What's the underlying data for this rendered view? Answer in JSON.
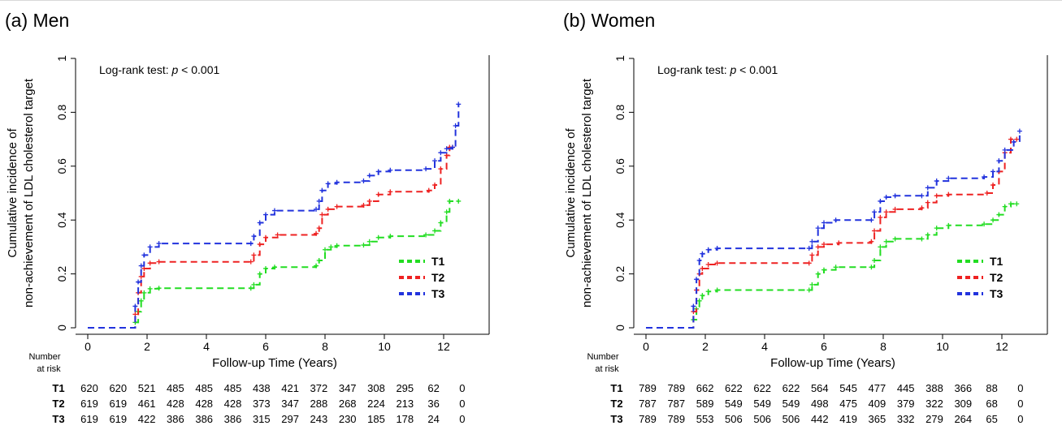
{
  "chart_data": [
    {
      "type": "line",
      "title": "(a) Men",
      "annotation": "Log-rank test:",
      "annotation_p": "p",
      "annotation_value": "< 0.001",
      "xlabel": "Follow-up Time (Years)",
      "ylabel_line1": "Cumulative incidence of",
      "ylabel_line2": "non-achievement of LDL cholesterol target",
      "xlim": [
        0,
        13.5
      ],
      "ylim": [
        0,
        1
      ],
      "xticks": [
        "0",
        "2",
        "4",
        "6",
        "8",
        "10",
        "12"
      ],
      "yticks": [
        "0",
        "0.2",
        "0.4",
        "0.6",
        "0.8",
        "1"
      ],
      "legend_position": "right",
      "series": [
        {
          "name": "T1",
          "color": "#22dd22",
          "points": [
            [
              0,
              0
            ],
            [
              1.5,
              0
            ],
            [
              1.6,
              0.02
            ],
            [
              1.7,
              0.06
            ],
            [
              1.8,
              0.1
            ],
            [
              1.9,
              0.13
            ],
            [
              2.1,
              0.145
            ],
            [
              2.4,
              0.147
            ],
            [
              5.5,
              0.147
            ],
            [
              5.6,
              0.16
            ],
            [
              5.8,
              0.2
            ],
            [
              6.0,
              0.22
            ],
            [
              6.3,
              0.225
            ],
            [
              7.7,
              0.23
            ],
            [
              7.8,
              0.25
            ],
            [
              8.0,
              0.29
            ],
            [
              8.2,
              0.3
            ],
            [
              8.4,
              0.305
            ],
            [
              9.3,
              0.307
            ],
            [
              9.5,
              0.32
            ],
            [
              9.8,
              0.335
            ],
            [
              10.2,
              0.34
            ],
            [
              11.4,
              0.345
            ],
            [
              11.7,
              0.36
            ],
            [
              11.9,
              0.39
            ],
            [
              12.1,
              0.43
            ],
            [
              12.2,
              0.47
            ],
            [
              12.5,
              0.47
            ]
          ]
        },
        {
          "name": "T2",
          "color": "#ee2222",
          "points": [
            [
              0,
              0
            ],
            [
              1.5,
              0
            ],
            [
              1.6,
              0.05
            ],
            [
              1.7,
              0.13
            ],
            [
              1.8,
              0.19
            ],
            [
              1.9,
              0.22
            ],
            [
              2.1,
              0.24
            ],
            [
              2.4,
              0.245
            ],
            [
              5.5,
              0.245
            ],
            [
              5.6,
              0.27
            ],
            [
              5.8,
              0.31
            ],
            [
              6.0,
              0.335
            ],
            [
              6.4,
              0.345
            ],
            [
              7.7,
              0.35
            ],
            [
              7.8,
              0.37
            ],
            [
              7.9,
              0.42
            ],
            [
              8.1,
              0.44
            ],
            [
              8.4,
              0.45
            ],
            [
              9.3,
              0.455
            ],
            [
              9.5,
              0.47
            ],
            [
              9.8,
              0.495
            ],
            [
              10.2,
              0.505
            ],
            [
              11.5,
              0.51
            ],
            [
              11.7,
              0.53
            ],
            [
              11.9,
              0.59
            ],
            [
              12.1,
              0.64
            ],
            [
              12.2,
              0.67
            ],
            [
              12.3,
              0.67
            ]
          ]
        },
        {
          "name": "T3",
          "color": "#2233dd",
          "points": [
            [
              0,
              0
            ],
            [
              1.5,
              0
            ],
            [
              1.6,
              0.08
            ],
            [
              1.7,
              0.17
            ],
            [
              1.8,
              0.23
            ],
            [
              1.9,
              0.27
            ],
            [
              2.1,
              0.3
            ],
            [
              2.4,
              0.313
            ],
            [
              5.5,
              0.313
            ],
            [
              5.6,
              0.34
            ],
            [
              5.8,
              0.39
            ],
            [
              6.0,
              0.42
            ],
            [
              6.3,
              0.435
            ],
            [
              7.7,
              0.44
            ],
            [
              7.8,
              0.47
            ],
            [
              7.9,
              0.51
            ],
            [
              8.1,
              0.535
            ],
            [
              8.4,
              0.54
            ],
            [
              9.3,
              0.545
            ],
            [
              9.5,
              0.565
            ],
            [
              9.8,
              0.58
            ],
            [
              10.2,
              0.585
            ],
            [
              11.4,
              0.59
            ],
            [
              11.7,
              0.62
            ],
            [
              11.9,
              0.65
            ],
            [
              12.1,
              0.665
            ],
            [
              12.3,
              0.67
            ],
            [
              12.4,
              0.75
            ],
            [
              12.5,
              0.83
            ]
          ]
        }
      ],
      "risk_table": {
        "label_line1": "Number",
        "label_line2": "at risk",
        "rows": [
          {
            "name": "T1",
            "values": [
              "620",
              "620",
              "521",
              "485",
              "485",
              "485",
              "438",
              "421",
              "372",
              "347",
              "308",
              "295",
              "62",
              "0"
            ]
          },
          {
            "name": "T2",
            "values": [
              "619",
              "619",
              "461",
              "428",
              "428",
              "428",
              "373",
              "347",
              "288",
              "268",
              "224",
              "213",
              "36",
              "0"
            ]
          },
          {
            "name": "T3",
            "values": [
              "619",
              "619",
              "422",
              "386",
              "386",
              "386",
              "315",
              "297",
              "243",
              "230",
              "185",
              "178",
              "24",
              "0"
            ]
          }
        ]
      }
    },
    {
      "type": "line",
      "title": "(b) Women",
      "annotation": "Log-rank test:",
      "annotation_p": "p",
      "annotation_value": "< 0.001",
      "xlabel": "Follow-up Time (Years)",
      "ylabel_line1": "Cumulative incidence of",
      "ylabel_line2": "non-achievement of LDL cholesterol target",
      "xlim": [
        0,
        13.5
      ],
      "ylim": [
        0,
        1
      ],
      "xticks": [
        "0",
        "2",
        "4",
        "6",
        "8",
        "10",
        "12"
      ],
      "yticks": [
        "0",
        "0.2",
        "0.4",
        "0.6",
        "0.8",
        "1"
      ],
      "legend_position": "right",
      "series": [
        {
          "name": "T1",
          "color": "#22dd22",
          "points": [
            [
              0,
              0
            ],
            [
              1.5,
              0
            ],
            [
              1.6,
              0.03
            ],
            [
              1.7,
              0.07
            ],
            [
              1.8,
              0.1
            ],
            [
              1.9,
              0.12
            ],
            [
              2.1,
              0.135
            ],
            [
              2.4,
              0.14
            ],
            [
              5.5,
              0.14
            ],
            [
              5.6,
              0.16
            ],
            [
              5.8,
              0.2
            ],
            [
              6.0,
              0.215
            ],
            [
              6.4,
              0.225
            ],
            [
              7.6,
              0.225
            ],
            [
              7.7,
              0.25
            ],
            [
              7.9,
              0.3
            ],
            [
              8.1,
              0.32
            ],
            [
              8.4,
              0.33
            ],
            [
              9.3,
              0.33
            ],
            [
              9.5,
              0.345
            ],
            [
              9.8,
              0.37
            ],
            [
              10.2,
              0.38
            ],
            [
              11.4,
              0.385
            ],
            [
              11.7,
              0.4
            ],
            [
              11.9,
              0.42
            ],
            [
              12.1,
              0.45
            ],
            [
              12.3,
              0.46
            ],
            [
              12.5,
              0.46
            ]
          ]
        },
        {
          "name": "T2",
          "color": "#ee2222",
          "points": [
            [
              0,
              0
            ],
            [
              1.5,
              0
            ],
            [
              1.6,
              0.06
            ],
            [
              1.7,
              0.14
            ],
            [
              1.8,
              0.2
            ],
            [
              1.9,
              0.22
            ],
            [
              2.1,
              0.235
            ],
            [
              2.4,
              0.24
            ],
            [
              5.5,
              0.24
            ],
            [
              5.6,
              0.27
            ],
            [
              5.8,
              0.3
            ],
            [
              6.0,
              0.31
            ],
            [
              6.5,
              0.315
            ],
            [
              7.6,
              0.32
            ],
            [
              7.7,
              0.36
            ],
            [
              7.9,
              0.41
            ],
            [
              8.1,
              0.43
            ],
            [
              8.4,
              0.44
            ],
            [
              9.3,
              0.445
            ],
            [
              9.5,
              0.465
            ],
            [
              9.8,
              0.49
            ],
            [
              10.2,
              0.495
            ],
            [
              11.5,
              0.5
            ],
            [
              11.7,
              0.53
            ],
            [
              11.9,
              0.58
            ],
            [
              12.1,
              0.65
            ],
            [
              12.3,
              0.7
            ],
            [
              12.5,
              0.7
            ]
          ]
        },
        {
          "name": "T3",
          "color": "#2233dd",
          "points": [
            [
              0,
              0
            ],
            [
              1.5,
              0
            ],
            [
              1.6,
              0.08
            ],
            [
              1.7,
              0.18
            ],
            [
              1.8,
              0.25
            ],
            [
              1.9,
              0.275
            ],
            [
              2.1,
              0.29
            ],
            [
              2.4,
              0.295
            ],
            [
              5.5,
              0.295
            ],
            [
              5.6,
              0.32
            ],
            [
              5.8,
              0.37
            ],
            [
              6.0,
              0.39
            ],
            [
              6.4,
              0.4
            ],
            [
              7.6,
              0.4
            ],
            [
              7.7,
              0.43
            ],
            [
              7.9,
              0.47
            ],
            [
              8.1,
              0.485
            ],
            [
              8.4,
              0.49
            ],
            [
              9.3,
              0.49
            ],
            [
              9.5,
              0.52
            ],
            [
              9.8,
              0.545
            ],
            [
              10.2,
              0.555
            ],
            [
              11.4,
              0.56
            ],
            [
              11.7,
              0.58
            ],
            [
              11.9,
              0.62
            ],
            [
              12.1,
              0.66
            ],
            [
              12.4,
              0.69
            ],
            [
              12.6,
              0.73
            ]
          ]
        }
      ],
      "risk_table": {
        "label_line1": "Number",
        "label_line2": "at risk",
        "rows": [
          {
            "name": "T1",
            "values": [
              "789",
              "789",
              "662",
              "622",
              "622",
              "622",
              "564",
              "545",
              "477",
              "445",
              "388",
              "366",
              "88",
              "0"
            ]
          },
          {
            "name": "T2",
            "values": [
              "787",
              "787",
              "589",
              "549",
              "549",
              "549",
              "498",
              "475",
              "409",
              "379",
              "322",
              "309",
              "68",
              "0"
            ]
          },
          {
            "name": "T3",
            "values": [
              "789",
              "789",
              "553",
              "506",
              "506",
              "506",
              "442",
              "419",
              "365",
              "332",
              "279",
              "264",
              "65",
              "0"
            ]
          }
        ]
      }
    }
  ]
}
